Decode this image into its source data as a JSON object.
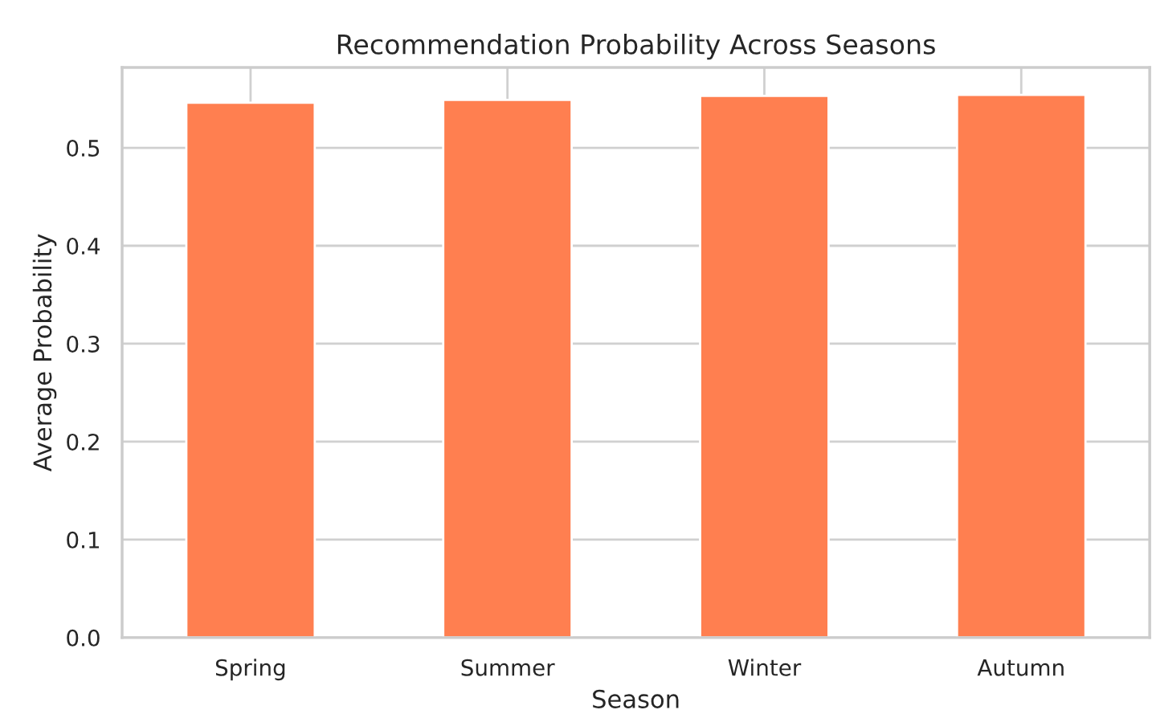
{
  "chart_data": {
    "type": "bar",
    "title": "Recommendation Probability Across Seasons",
    "xlabel": "Season",
    "ylabel": "Average Probability",
    "categories": [
      "Spring",
      "Summer",
      "Winter",
      "Autumn"
    ],
    "values": [
      0.546,
      0.549,
      0.553,
      0.554
    ],
    "color": "#ff7f50",
    "ylim": [
      0,
      0.582
    ],
    "yticks": [
      {
        "value": 0,
        "label": "0.0"
      },
      0.1,
      0.2,
      0.3,
      0.4,
      0.5
    ],
    "grid": true
  }
}
